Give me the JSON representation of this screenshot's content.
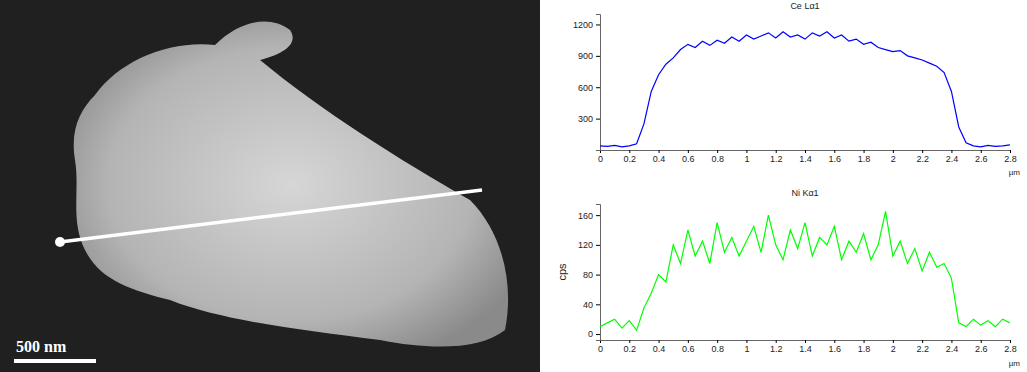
{
  "image": {
    "scale_bar_label": "500 nm"
  },
  "chart_data": [
    {
      "type": "line",
      "title": "Ce Lα1",
      "x_label": "µm",
      "color": "#0000ff",
      "x": [
        0,
        0.05,
        0.1,
        0.15,
        0.2,
        0.25,
        0.3,
        0.35,
        0.4,
        0.45,
        0.5,
        0.55,
        0.6,
        0.65,
        0.7,
        0.75,
        0.8,
        0.85,
        0.9,
        0.95,
        1.0,
        1.05,
        1.1,
        1.15,
        1.2,
        1.25,
        1.3,
        1.35,
        1.4,
        1.45,
        1.5,
        1.55,
        1.6,
        1.65,
        1.7,
        1.75,
        1.8,
        1.85,
        1.9,
        1.95,
        2.0,
        2.05,
        2.1,
        2.15,
        2.2,
        2.25,
        2.3,
        2.35,
        2.4,
        2.45,
        2.5,
        2.55,
        2.6,
        2.65,
        2.7,
        2.75,
        2.8
      ],
      "values": [
        40,
        35,
        45,
        30,
        40,
        60,
        250,
        560,
        720,
        820,
        880,
        960,
        1010,
        980,
        1040,
        1000,
        1050,
        1020,
        1080,
        1040,
        1100,
        1060,
        1090,
        1120,
        1070,
        1130,
        1080,
        1100,
        1060,
        1120,
        1090,
        1130,
        1070,
        1100,
        1040,
        1060,
        1010,
        1030,
        980,
        960,
        940,
        950,
        900,
        880,
        860,
        830,
        800,
        740,
        560,
        220,
        70,
        40,
        30,
        45,
        35,
        40,
        50
      ],
      "xlim": [
        0,
        2.8
      ],
      "xticks": [
        0,
        0.2,
        0.4,
        0.6,
        0.8,
        1,
        1.2,
        1.4,
        1.6,
        1.8,
        2,
        2.2,
        2.4,
        2.6,
        2.8
      ],
      "ylim": [
        0,
        1300
      ],
      "yticks": [
        300,
        600,
        900,
        1200
      ],
      "grid": false
    },
    {
      "type": "line",
      "title": "Ni Kα1",
      "x_label": "µm",
      "y_label": "cps",
      "color": "#00ff00",
      "x": [
        0,
        0.05,
        0.1,
        0.15,
        0.2,
        0.25,
        0.3,
        0.35,
        0.4,
        0.45,
        0.5,
        0.55,
        0.6,
        0.65,
        0.7,
        0.75,
        0.8,
        0.85,
        0.9,
        0.95,
        1.0,
        1.05,
        1.1,
        1.15,
        1.2,
        1.25,
        1.3,
        1.35,
        1.4,
        1.45,
        1.5,
        1.55,
        1.6,
        1.65,
        1.7,
        1.75,
        1.8,
        1.85,
        1.9,
        1.95,
        2.0,
        2.05,
        2.1,
        2.15,
        2.2,
        2.25,
        2.3,
        2.35,
        2.4,
        2.45,
        2.5,
        2.55,
        2.6,
        2.65,
        2.7,
        2.75,
        2.8
      ],
      "values": [
        10,
        15,
        20,
        8,
        18,
        5,
        35,
        55,
        80,
        70,
        120,
        95,
        140,
        105,
        125,
        95,
        150,
        110,
        130,
        105,
        125,
        145,
        110,
        160,
        120,
        100,
        140,
        115,
        150,
        105,
        130,
        120,
        145,
        100,
        125,
        110,
        135,
        100,
        120,
        165,
        105,
        125,
        95,
        115,
        85,
        110,
        90,
        95,
        75,
        15,
        10,
        20,
        12,
        18,
        10,
        20,
        15
      ],
      "xlim": [
        0,
        2.8
      ],
      "xticks": [
        0,
        0.2,
        0.4,
        0.6,
        0.8,
        1,
        1.2,
        1.4,
        1.6,
        1.8,
        2,
        2.2,
        2.4,
        2.6,
        2.8
      ],
      "ylim": [
        -8,
        175
      ],
      "yticks": [
        0,
        40,
        80,
        120,
        160
      ],
      "grid": false
    }
  ]
}
